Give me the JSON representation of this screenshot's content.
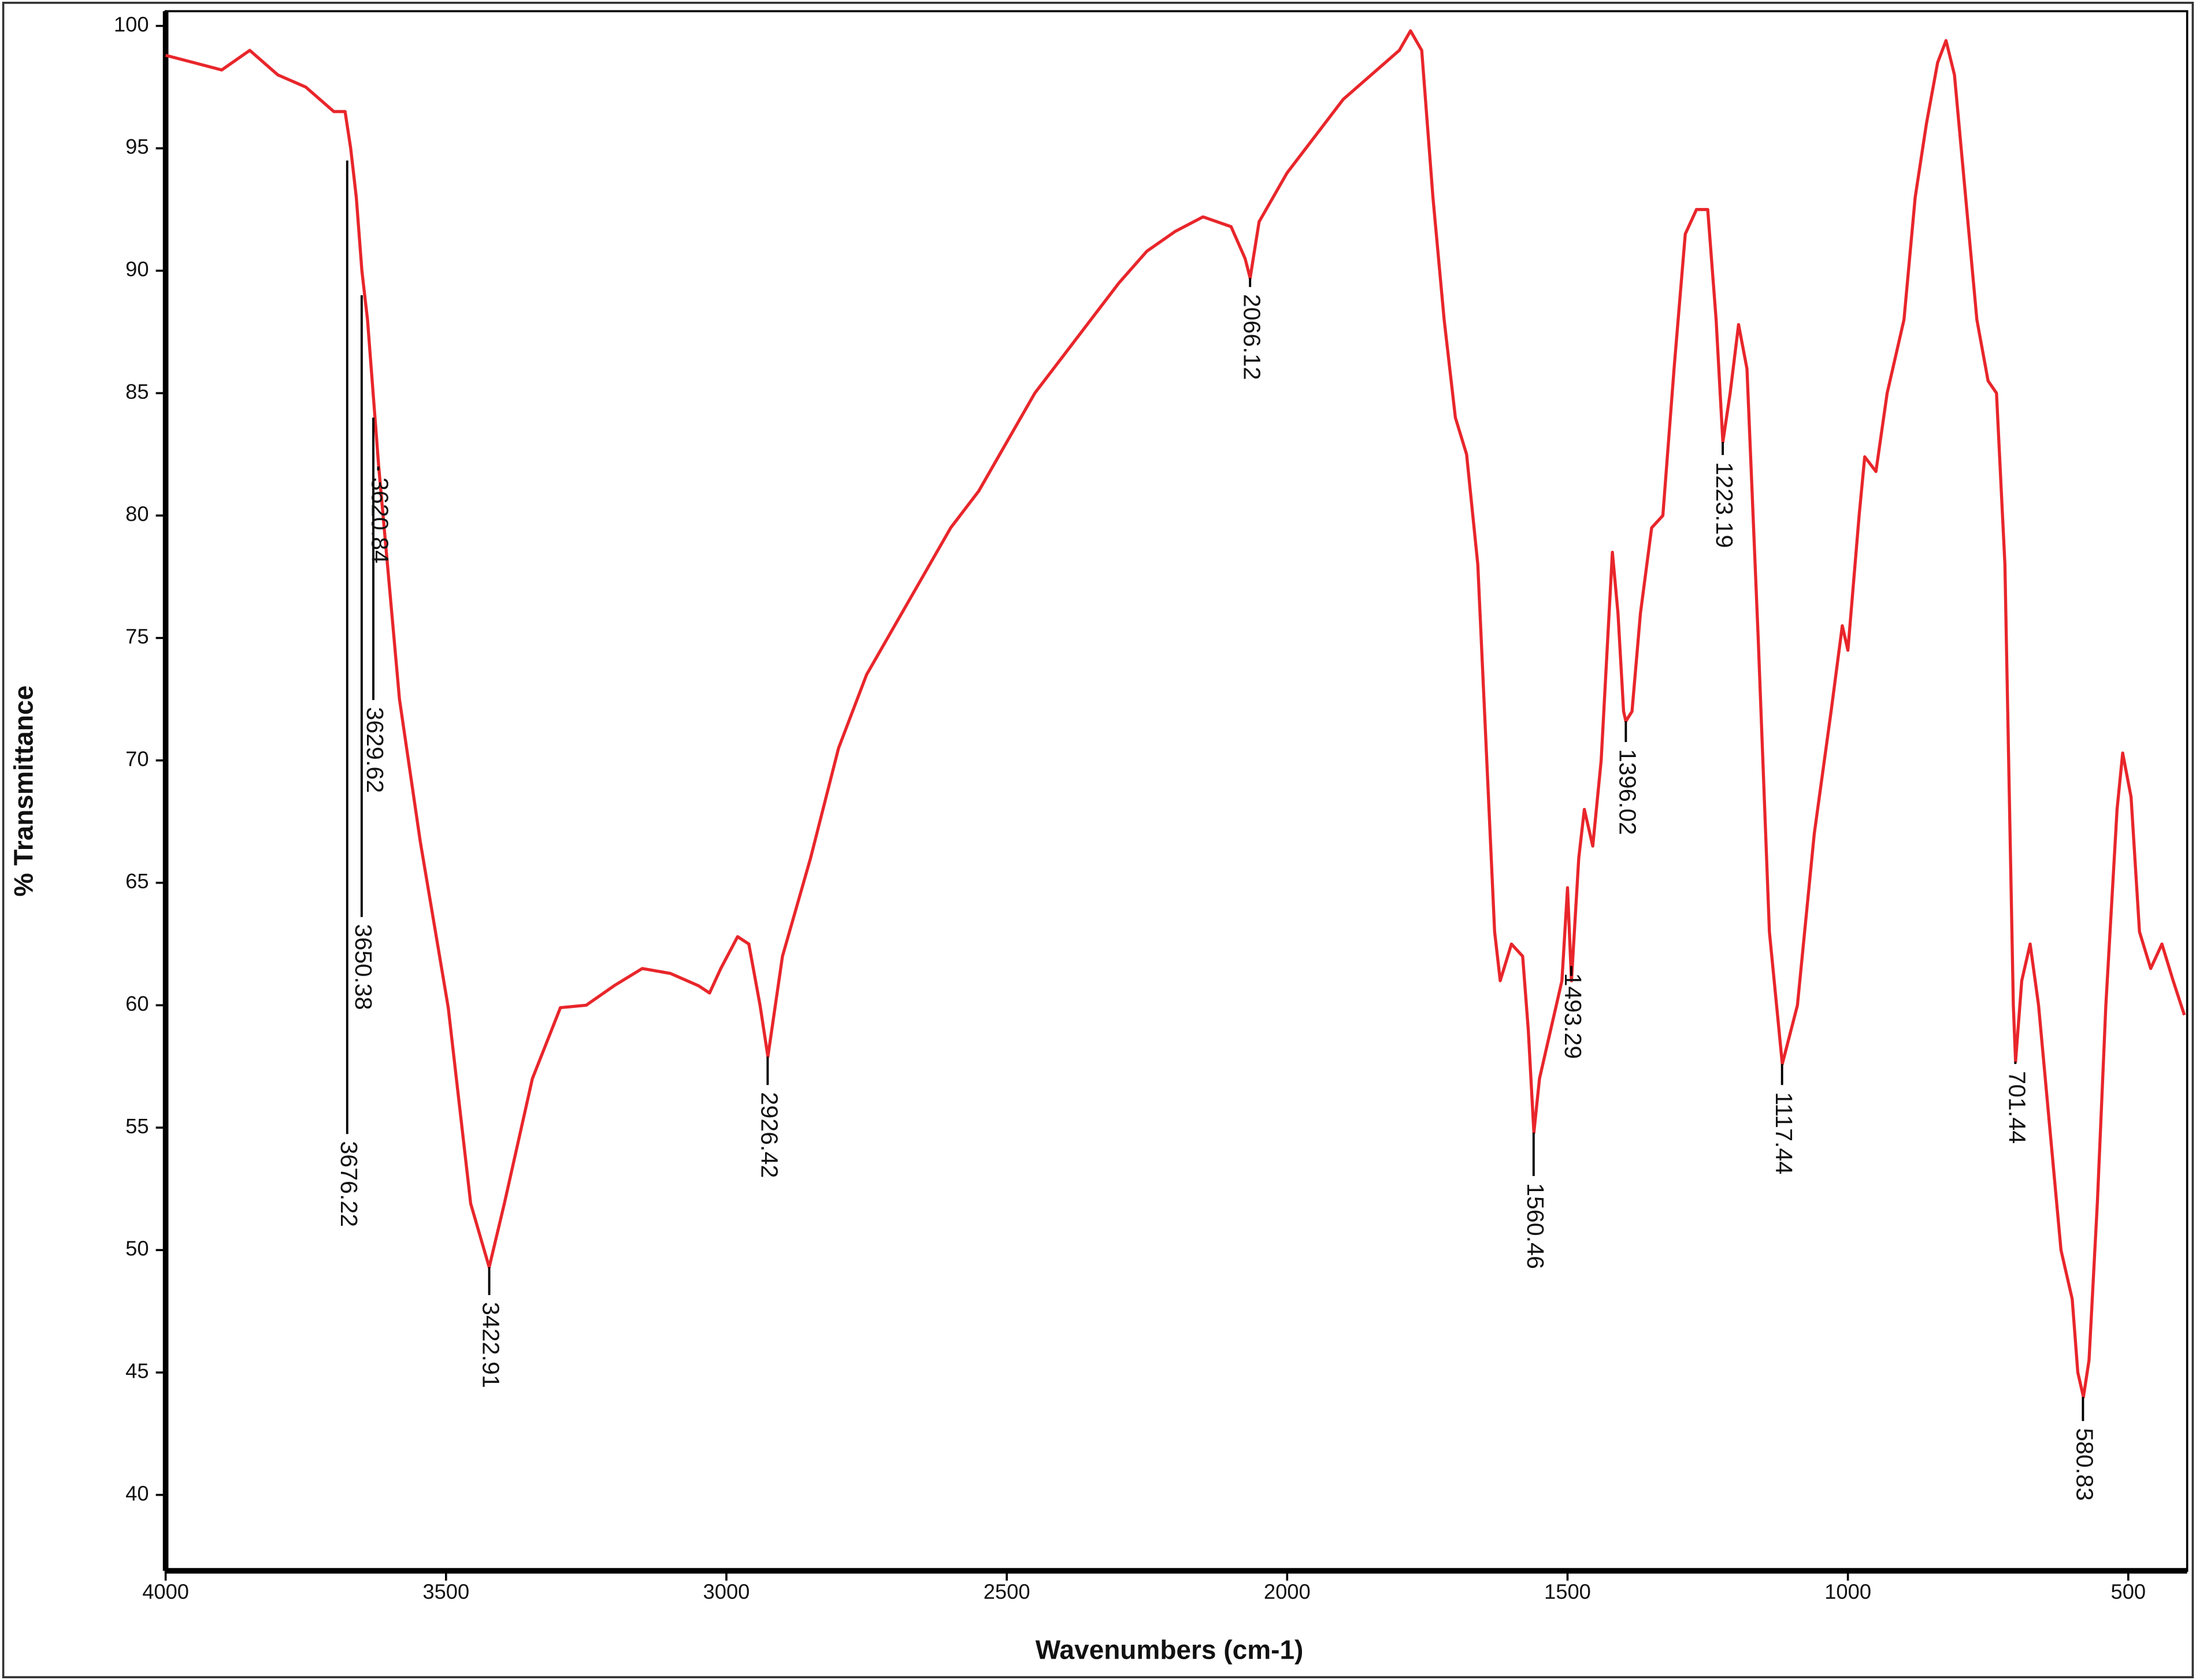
{
  "chart_data": {
    "type": "line",
    "x_label": "Wavenumbers (cm-1)",
    "y_label": "% Transmittance",
    "color": "#e8262b",
    "xlim": [
      4000,
      395
    ],
    "ylim": [
      36.9,
      100.6
    ],
    "xticks": [
      4000,
      3500,
      3000,
      2500,
      2000,
      1500,
      1000,
      500
    ],
    "yticks": [
      40,
      45,
      50,
      55,
      60,
      65,
      70,
      75,
      80,
      85,
      90,
      95,
      100
    ],
    "x": [
      4000,
      3950,
      3900,
      3850,
      3800,
      3750,
      3700,
      3680,
      3670,
      3660,
      3650,
      3640,
      3630,
      3620,
      3583,
      3546,
      3496,
      3456,
      3423,
      3396,
      3346,
      3296,
      3250,
      3200,
      3150,
      3100,
      3050,
      3030,
      3010,
      2980,
      2960,
      2940,
      2926,
      2900,
      2850,
      2800,
      2750,
      2700,
      2650,
      2600,
      2550,
      2500,
      2450,
      2400,
      2350,
      2300,
      2250,
      2200,
      2150,
      2100,
      2075,
      2066,
      2050,
      2000,
      1950,
      1900,
      1850,
      1800,
      1780,
      1760,
      1740,
      1720,
      1700,
      1680,
      1660,
      1640,
      1630,
      1620,
      1600,
      1580,
      1570,
      1560,
      1550,
      1530,
      1510,
      1500,
      1493,
      1480,
      1470,
      1455,
      1440,
      1420,
      1410,
      1400,
      1396,
      1385,
      1370,
      1350,
      1330,
      1310,
      1290,
      1270,
      1250,
      1235,
      1223,
      1210,
      1195,
      1180,
      1160,
      1140,
      1117,
      1090,
      1060,
      1030,
      1010,
      1000,
      980,
      970,
      950,
      930,
      900,
      880,
      860,
      840,
      825,
      810,
      790,
      770,
      750,
      735,
      720,
      705,
      701,
      690,
      675,
      660,
      640,
      620,
      610,
      600,
      590,
      580,
      570,
      555,
      540,
      520,
      510,
      495,
      480,
      460,
      440,
      420,
      400
    ],
    "values": [
      98.8,
      98.5,
      98.2,
      99,
      98,
      97.5,
      96.5,
      96.5,
      95,
      93,
      90,
      88,
      85,
      82,
      72.5,
      66.7,
      59.9,
      51.9,
      49.3,
      51.9,
      57,
      59.9,
      60,
      60.8,
      61.5,
      61.3,
      60.8,
      60.5,
      61.5,
      62.8,
      62.5,
      60,
      57.9,
      62,
      66,
      70.5,
      73.5,
      75.5,
      77.5,
      79.5,
      81,
      83,
      85,
      86.5,
      88,
      89.5,
      90.8,
      91.6,
      92.2,
      91.8,
      90.5,
      89.7,
      92,
      94,
      95.5,
      97,
      98,
      99,
      99.8,
      99,
      93,
      88,
      84,
      82.5,
      78,
      68,
      63,
      61,
      62.5,
      62,
      59,
      54.8,
      57,
      59,
      61,
      64.8,
      61,
      66,
      68,
      66.5,
      70,
      78.5,
      76,
      72,
      71.6,
      72,
      76,
      79.5,
      80,
      86,
      91.5,
      92.5,
      92.5,
      88,
      83,
      85,
      87.8,
      86,
      75,
      63,
      57.6,
      60,
      67,
      72,
      75.5,
      74.5,
      80,
      82.4,
      81.8,
      85,
      88,
      93,
      96,
      98.5,
      99.4,
      98,
      93,
      88,
      85.5,
      85,
      78,
      60,
      57.7,
      61,
      62.5,
      60,
      55,
      50,
      49,
      48,
      45,
      44,
      45.5,
      52,
      60,
      68,
      70.3,
      68.5,
      63,
      61.5,
      62.5,
      61,
      59.6
    ],
    "peaks": [
      {
        "x": 3676.22,
        "y": 94.5
      },
      {
        "x": 3650.38,
        "y": 89
      },
      {
        "x": 3629.62,
        "y": 84
      },
      {
        "x": 3620.84,
        "y": 82
      },
      {
        "x": 3422.91,
        "y": 49.3
      },
      {
        "x": 2926.42,
        "y": 57.9
      },
      {
        "x": 2066.12,
        "y": 89.7
      },
      {
        "x": 1560.46,
        "y": 54.8
      },
      {
        "x": 1493.29,
        "y": 61.2
      },
      {
        "x": 1396.02,
        "y": 71.6
      },
      {
        "x": 1223.19,
        "y": 83
      },
      {
        "x": 1117.44,
        "y": 57.6
      },
      {
        "x": 701.44,
        "y": 57.7
      },
      {
        "x": 580.83,
        "y": 44
      }
    ]
  }
}
